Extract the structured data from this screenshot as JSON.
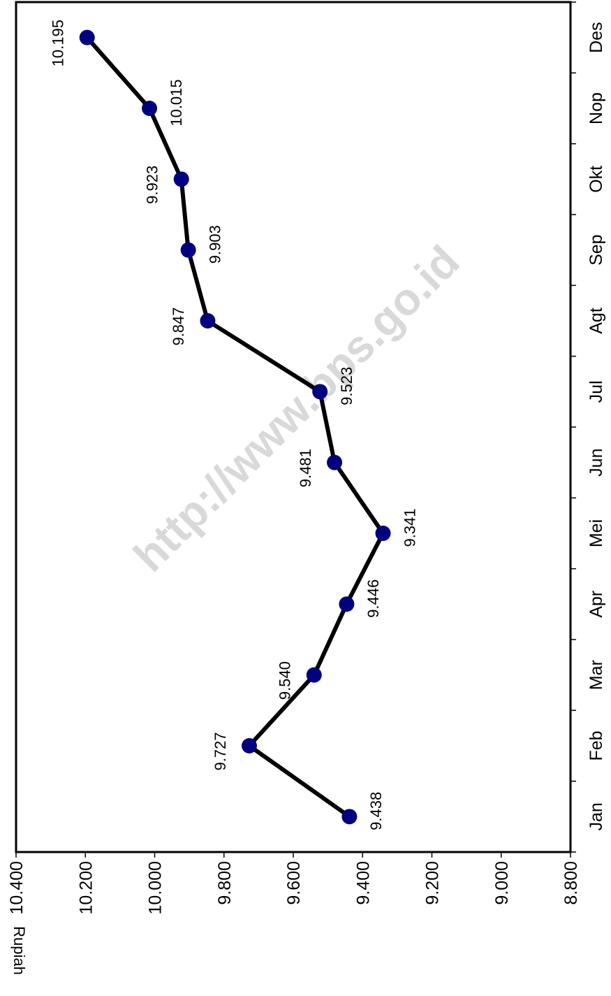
{
  "chart_data": {
    "type": "line",
    "categories": [
      "Jan",
      "Feb",
      "Mar",
      "Apr",
      "Mei",
      "Jun",
      "Jul",
      "Agt",
      "Sep",
      "Okt",
      "Nop",
      "Des"
    ],
    "values": [
      9438,
      9727,
      9540,
      9446,
      9341,
      9481,
      9523,
      9847,
      9903,
      9923,
      10015,
      10195
    ],
    "data_labels": [
      "9.438",
      "9.727",
      "9.540",
      "9.446",
      "9.341",
      "9.481",
      "9.523",
      "9.847",
      "9.903",
      "9.923",
      "10.015",
      "10.195"
    ],
    "ylabel": "Rupiah",
    "ylim": [
      8800,
      10400
    ],
    "y_ticks": [
      10400,
      10200,
      10000,
      9800,
      9600,
      9400,
      9200,
      9000,
      8800
    ],
    "y_tick_labels": [
      "10.400",
      "10.200",
      "10.000",
      "9.800",
      "9.600",
      "9.400",
      "9.200",
      "9.000",
      "8.800"
    ],
    "orientation": "rotated 90 degrees clockwise",
    "grid": false,
    "legend": "none",
    "line_color": "#000000",
    "marker_color": "#000080",
    "watermark": "http://www.bps.go.id"
  }
}
